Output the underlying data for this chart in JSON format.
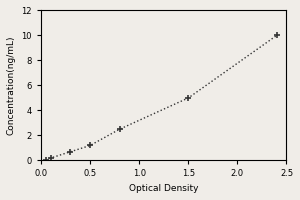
{
  "x_data": [
    0.05,
    0.1,
    0.3,
    0.5,
    0.8,
    1.5,
    2.4
  ],
  "y_data": [
    0.05,
    0.2,
    0.7,
    1.2,
    2.5,
    5.0,
    10.0
  ],
  "xlabel": "Optical Density",
  "ylabel": "Concentration(ng/mL)",
  "xlim": [
    0,
    2.5
  ],
  "ylim": [
    0,
    12
  ],
  "xticks": [
    0,
    0.5,
    1,
    1.5,
    2,
    2.5
  ],
  "yticks": [
    0,
    2,
    4,
    6,
    8,
    10,
    12
  ],
  "line_color": "#333333",
  "marker": "+",
  "marker_size": 5,
  "marker_edge_width": 1.2,
  "line_style": "dotted",
  "line_width": 1.0,
  "background_color": "#f0ede8",
  "plot_bg_color": "#f0ede8",
  "label_fontsize": 6.5,
  "tick_fontsize": 6
}
